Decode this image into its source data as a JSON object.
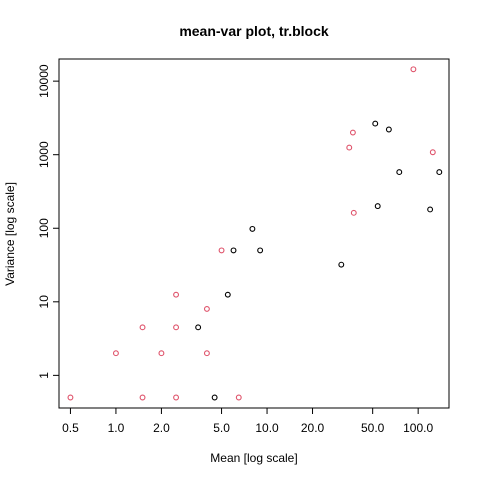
{
  "chart_data": {
    "type": "scatter",
    "title": "mean-var plot, tr.block",
    "xlabel": "Mean [log scale]",
    "ylabel": "Variance [log scale]",
    "x_scale": "log",
    "y_scale": "log",
    "xlim": [
      0.42,
      160
    ],
    "ylim": [
      0.36,
      20000
    ],
    "grid": false,
    "legend": "none",
    "x_ticks": [
      {
        "value": 0.5,
        "label": "0.5"
      },
      {
        "value": 1,
        "label": "1.0"
      },
      {
        "value": 2,
        "label": "2.0"
      },
      {
        "value": 5,
        "label": "5.0"
      },
      {
        "value": 10,
        "label": "10.0"
      },
      {
        "value": 20,
        "label": "20.0"
      },
      {
        "value": 50,
        "label": "50.0"
      },
      {
        "value": 100,
        "label": "100.0"
      }
    ],
    "y_ticks": [
      {
        "value": 1,
        "label": "1"
      },
      {
        "value": 10,
        "label": "10"
      },
      {
        "value": 100,
        "label": "100"
      },
      {
        "value": 1000,
        "label": "1000"
      },
      {
        "value": 10000,
        "label": "10000"
      }
    ],
    "series": [
      {
        "color": "#000000",
        "points": [
          {
            "x": 3.5,
            "y": 4.5
          },
          {
            "x": 4.5,
            "y": 0.5
          },
          {
            "x": 5.5,
            "y": 12.5
          },
          {
            "x": 6.0,
            "y": 50
          },
          {
            "x": 8.0,
            "y": 98
          },
          {
            "x": 9.0,
            "y": 50
          },
          {
            "x": 31,
            "y": 32
          },
          {
            "x": 52,
            "y": 2650
          },
          {
            "x": 54,
            "y": 200
          },
          {
            "x": 64,
            "y": 2200
          },
          {
            "x": 75,
            "y": 580
          },
          {
            "x": 120,
            "y": 180
          },
          {
            "x": 138,
            "y": 580
          }
        ]
      },
      {
        "color": "#DF536B",
        "points": [
          {
            "x": 0.5,
            "y": 0.5
          },
          {
            "x": 1.0,
            "y": 2.0
          },
          {
            "x": 1.5,
            "y": 4.5
          },
          {
            "x": 1.5,
            "y": 0.5
          },
          {
            "x": 2.0,
            "y": 2.0
          },
          {
            "x": 2.5,
            "y": 12.5
          },
          {
            "x": 2.5,
            "y": 4.5
          },
          {
            "x": 2.5,
            "y": 0.5
          },
          {
            "x": 4.0,
            "y": 8.0
          },
          {
            "x": 4.0,
            "y": 2.0
          },
          {
            "x": 5.0,
            "y": 50
          },
          {
            "x": 6.5,
            "y": 0.5
          },
          {
            "x": 35,
            "y": 1250
          },
          {
            "x": 37,
            "y": 2000
          },
          {
            "x": 37.5,
            "y": 162
          },
          {
            "x": 93,
            "y": 14500
          },
          {
            "x": 125,
            "y": 1080
          }
        ]
      }
    ]
  }
}
